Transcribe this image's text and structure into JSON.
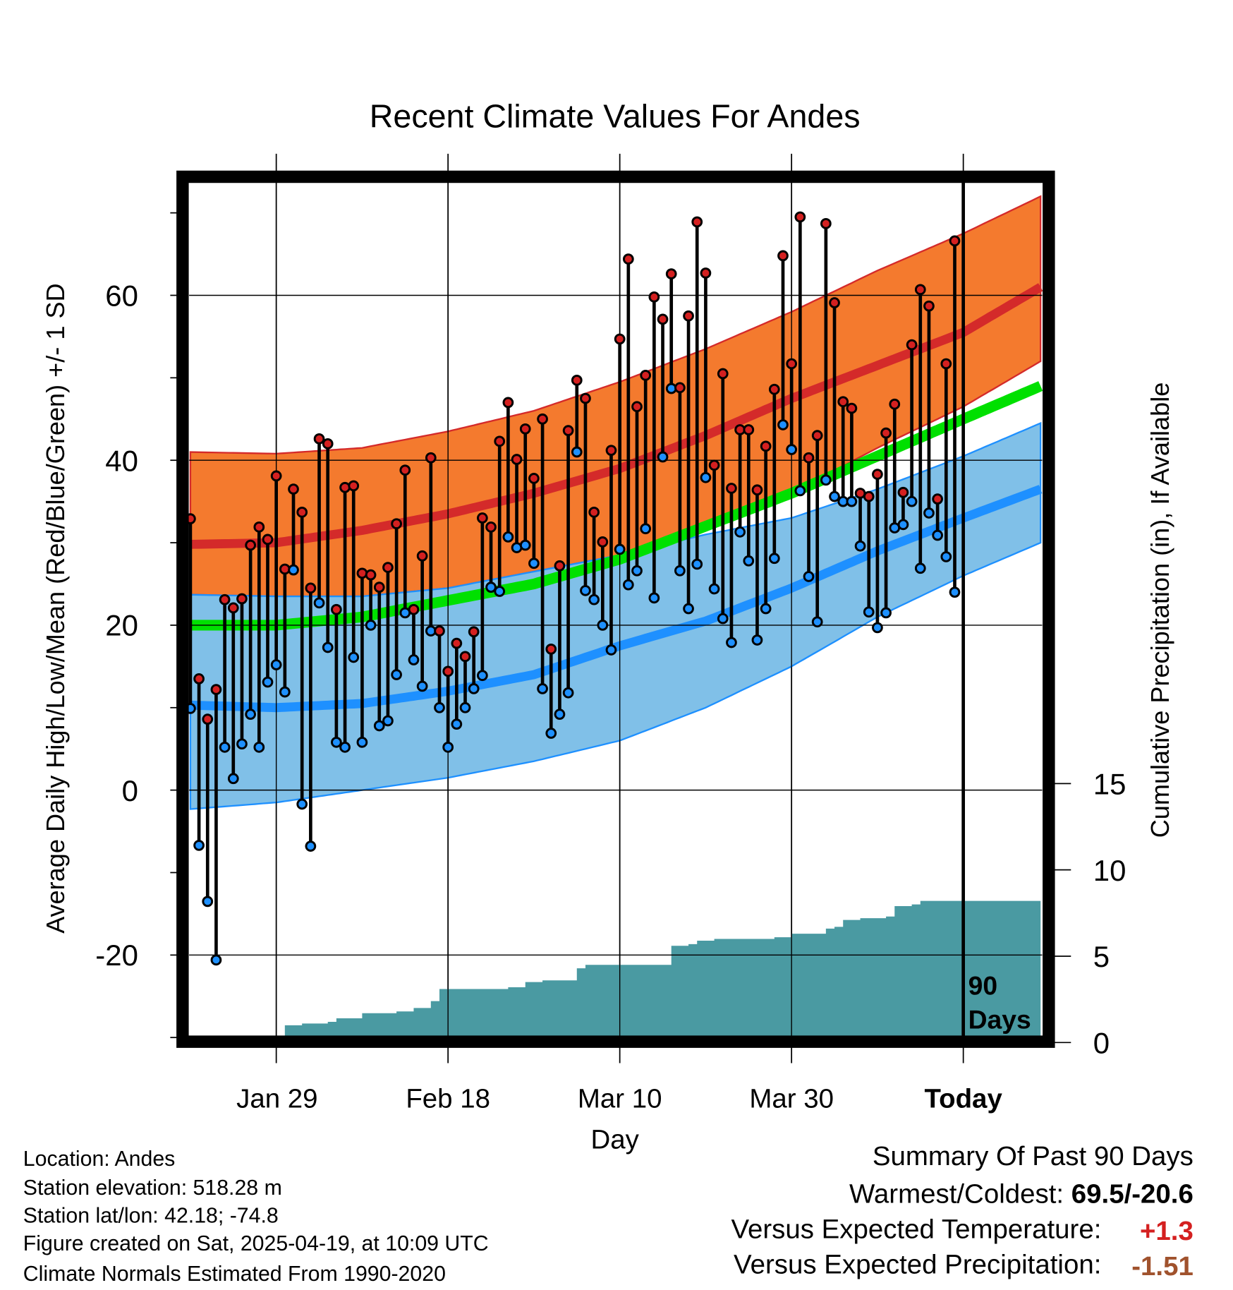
{
  "chart_data": {
    "type": "line",
    "title": "Recent Climate Values For Andes",
    "xlabel": "Day",
    "ylabel": "Average Daily High/Low/Mean (Red/Blue/Green) +/- 1 SD",
    "y2label": "Cumulative Precipitation (in), If Available",
    "x_tick_labels": [
      "Jan 29",
      "Feb 18",
      "Mar 10",
      "Mar 30",
      "Today"
    ],
    "x_tick_days": [
      -80,
      -60,
      -40,
      -20,
      0
    ],
    "xlim": [
      -90,
      9
    ],
    "ylim": [
      -30,
      73.7
    ],
    "y_ticks": [
      "-20",
      "0",
      "20",
      "40",
      "60"
    ],
    "y2_ticks": [
      "0",
      "5",
      "10",
      "15"
    ],
    "y2lim": [
      0,
      15
    ],
    "today_marker": {
      "line1": "90",
      "line2": "Days"
    },
    "grid": true,
    "days": [
      -90,
      -89,
      -88,
      -87,
      -86,
      -85,
      -84,
      -83,
      -82,
      -81,
      -80,
      -79,
      -78,
      -77,
      -76,
      -75,
      -74,
      -73,
      -72,
      -71,
      -70,
      -69,
      -68,
      -67,
      -66,
      -65,
      -64,
      -63,
      -62,
      -61,
      -60,
      -59,
      -58,
      -57,
      -56,
      -55,
      -54,
      -53,
      -52,
      -51,
      -50,
      -49,
      -48,
      -47,
      -46,
      -45,
      -44,
      -43,
      -42,
      -41,
      -40,
      -39,
      -38,
      -37,
      -36,
      -35,
      -34,
      -33,
      -32,
      -31,
      -30,
      -29,
      -28,
      -27,
      -26,
      -25,
      -24,
      -23,
      -22,
      -21,
      -20,
      -19,
      -18,
      -17,
      -16,
      -15,
      -14,
      -13,
      -12,
      -11,
      -10,
      -9,
      -8,
      -7,
      -6,
      -5,
      -4,
      -3,
      -2,
      -1
    ],
    "highs": [
      32.9,
      13.5,
      8.6,
      12.2,
      23.1,
      22.1,
      23.2,
      29.7,
      31.9,
      30.4,
      38.1,
      26.8,
      36.5,
      33.7,
      24.5,
      42.6,
      42.0,
      21.9,
      36.7,
      36.9,
      26.3,
      26.1,
      24.6,
      27.0,
      32.3,
      38.8,
      21.9,
      28.4,
      40.3,
      19.3,
      14.4,
      17.8,
      16.2,
      19.2,
      33.0,
      31.9,
      42.3,
      47.0,
      40.1,
      43.8,
      37.8,
      45.0,
      17.1,
      27.2,
      43.6,
      49.7,
      47.5,
      33.7,
      30.1,
      41.2,
      54.7,
      64.4,
      46.5,
      50.3,
      59.8,
      57.1,
      62.6,
      48.8,
      57.5,
      68.9,
      62.7,
      39.4,
      50.5,
      36.6,
      43.7,
      43.7,
      36.4,
      41.7,
      48.6,
      64.8,
      51.7,
      69.5,
      40.3,
      43.0,
      68.7,
      59.1,
      47.1,
      46.3,
      36.0,
      35.6,
      38.3,
      43.3,
      46.8,
      36.1,
      54.0,
      60.7,
      58.7,
      35.3,
      51.7,
      66.6
    ],
    "lows": [
      9.9,
      -6.7,
      -13.5,
      -20.6,
      5.2,
      1.4,
      5.6,
      9.2,
      5.2,
      13.1,
      15.2,
      11.9,
      26.7,
      -1.7,
      -6.8,
      22.7,
      17.3,
      5.8,
      5.2,
      16.1,
      5.8,
      20.0,
      7.8,
      8.4,
      14.0,
      21.5,
      15.8,
      12.6,
      19.3,
      10.0,
      5.2,
      8.0,
      10.0,
      12.3,
      13.9,
      24.6,
      24.1,
      30.7,
      29.4,
      29.7,
      27.5,
      12.3,
      6.9,
      9.2,
      11.8,
      41.0,
      24.2,
      23.1,
      20.0,
      17.0,
      29.2,
      24.9,
      26.6,
      31.7,
      23.3,
      40.4,
      48.7,
      26.6,
      22.0,
      27.4,
      37.9,
      24.4,
      20.8,
      17.9,
      31.3,
      27.8,
      18.2,
      22.0,
      28.1,
      44.3,
      41.3,
      36.3,
      25.9,
      20.4,
      37.6,
      35.6,
      35.0,
      35.0,
      29.6,
      21.6,
      19.7,
      21.5,
      31.8,
      32.2,
      35.0,
      26.9,
      33.6,
      30.9,
      28.3,
      24.0
    ],
    "normals": {
      "days": [
        -90,
        -80,
        -70,
        -60,
        -50,
        -40,
        -30,
        -20,
        -10,
        0,
        9
      ],
      "high_upper": [
        41,
        40.8,
        41.5,
        43.5,
        46,
        49.5,
        53.5,
        58,
        63,
        67.5,
        72
      ],
      "mean_high": [
        29.8,
        30,
        31.5,
        33.5,
        36,
        39,
        43,
        47.5,
        51.5,
        55.5,
        61
      ],
      "high_lower": [
        23.7,
        23.5,
        23.5,
        24.5,
        26.5,
        28.5,
        32,
        36,
        41.5,
        46.5,
        52
      ],
      "low_upper": [
        23.7,
        23.5,
        23.5,
        24.5,
        26.5,
        28.5,
        31,
        33,
        36.5,
        40.5,
        44.5
      ],
      "mean_low": [
        10.3,
        10,
        10.5,
        12,
        14,
        17.5,
        20.5,
        24.5,
        29,
        33,
        36.5
      ],
      "low_lower": [
        -2.3,
        -1.5,
        0,
        1.5,
        3.5,
        6,
        10,
        15,
        21,
        26,
        30
      ],
      "mean": [
        20,
        20,
        21,
        23,
        25,
        28,
        32,
        36,
        40.5,
        45,
        49
      ]
    },
    "precip": {
      "days": [
        -90,
        -81,
        -80,
        -79,
        -77,
        -74,
        -73,
        -70,
        -66,
        -64,
        -62,
        -61,
        -57,
        -53,
        -51,
        -49,
        -46,
        -45,
        -44,
        -35,
        -34,
        -32,
        -31,
        -29,
        -25,
        -22,
        -20,
        -17,
        -16,
        -15,
        -14,
        -12,
        -9,
        -8,
        -6,
        -5,
        9
      ],
      "values": [
        0,
        0.1,
        0.4,
        1.0,
        1.1,
        1.2,
        1.4,
        1.7,
        1.8,
        2.0,
        2.4,
        3.1,
        3.1,
        3.2,
        3.5,
        3.6,
        3.6,
        4.3,
        4.5,
        4.5,
        5.6,
        5.7,
        5.9,
        6.0,
        6.0,
        6.1,
        6.3,
        6.3,
        6.6,
        6.7,
        7.1,
        7.2,
        7.3,
        7.9,
        8.0,
        8.2,
        8.2
      ]
    },
    "colors": {
      "high": "#d42020",
      "low": "#1e90ff",
      "orange": "#f47a2e",
      "redline": "#d42a2a",
      "lightblue": "#80c0e8",
      "green": "#00e000",
      "precip": "#4a9aa2"
    }
  },
  "info": {
    "location": "Location: Andes",
    "elevation": "Station elevation: 518.28 m",
    "latlon": "Station lat/lon: 42.18; -74.8",
    "created": "Figure created on Sat, 2025-04-19, at 10:09 UTC",
    "normals": "Climate Normals Estimated From 1990-2020"
  },
  "summary": {
    "heading": "Summary Of Past 90 Days",
    "warmest_label": "Warmest/Coldest: ",
    "warmest_value": "69.5/-20.6",
    "temp_label": "Versus Expected Temperature:",
    "temp_value": "+1.3",
    "precip_label": "Versus Expected Precipitation:",
    "precip_value": "-1.51"
  }
}
